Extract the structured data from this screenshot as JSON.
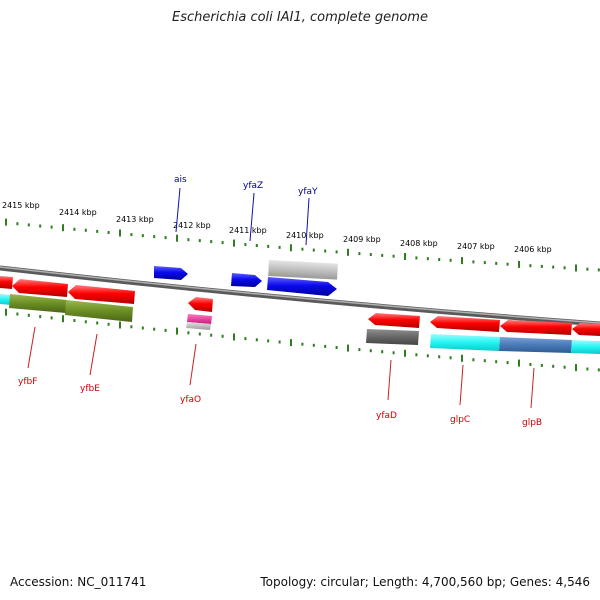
{
  "title": "Escherichia coli IAI1, complete genome",
  "footer": {
    "accession": "Accession: NC_011741",
    "summary": "Topology: circular; Length: 4,700,560 bp; Genes: 4,546"
  },
  "colors": {
    "forward_gene": "#0a0aee",
    "reverse_gene": "#ee0a0a",
    "axis": "#999999",
    "tick": "#2e7d1e",
    "olive": "#6b8e23",
    "cyan": "#22f4f4",
    "steel": "#4a7ab8",
    "gray_cds": "#c0c0c0",
    "dark_gray": "#666666",
    "pink": "#ee3399",
    "forward_label": "#00008b",
    "reverse_label": "#cc0000"
  },
  "ticks": {
    "outer_labels": [
      "2415 kbp",
      "2414 kbp",
      "2413 kbp",
      "2412 kbp",
      "2411 kbp",
      "2410 kbp",
      "2409 kbp",
      "2408 kbp",
      "2407 kbp",
      "2406 kbp"
    ]
  },
  "forward_genes": [
    {
      "label": "ais"
    },
    {
      "label": "yfaZ"
    },
    {
      "label": "yfaY"
    }
  ],
  "reverse_genes": [
    {
      "label": "yfbF"
    },
    {
      "label": "yfbE"
    },
    {
      "label": "yfaO"
    },
    {
      "label": "yfaD"
    },
    {
      "label": "glpC"
    },
    {
      "label": "glpB"
    }
  ]
}
